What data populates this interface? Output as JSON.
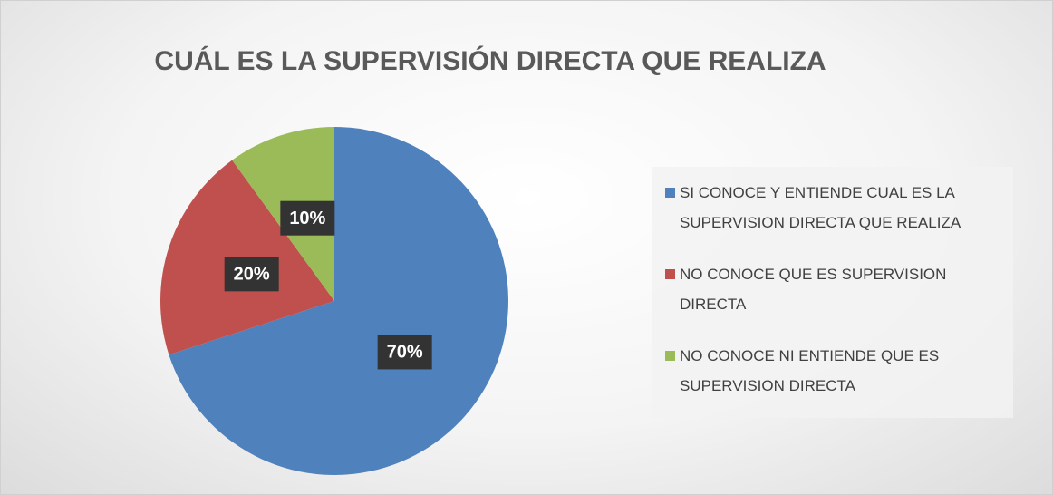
{
  "chart_data": {
    "type": "pie",
    "title": "CUÁL ES LA SUPERVISIÓN DIRECTA QUE REALIZA",
    "categories": [
      "SI CONOCE Y ENTIENDE CUAL ES LA SUPERVISION DIRECTA QUE REALIZA",
      "NO CONOCE QUE ES SUPERVISION DIRECTA",
      "NO CONOCE NI ENTIENDE QUE ES SUPERVISION DIRECTA"
    ],
    "values": [
      70,
      20,
      10
    ],
    "value_labels": [
      "70%",
      "20%",
      "10%"
    ],
    "colors": [
      "#4f81bd",
      "#c0504d",
      "#9bbb59"
    ],
    "legend": "right"
  }
}
